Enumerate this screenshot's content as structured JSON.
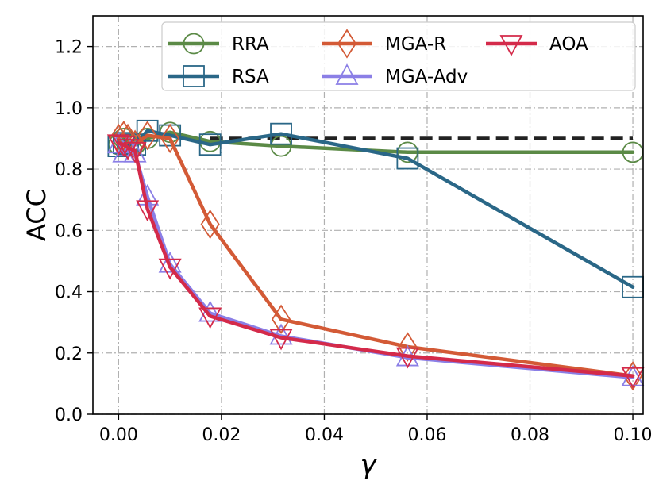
{
  "chart_data": {
    "type": "line",
    "xlabel": "γ",
    "ylabel": "ACC",
    "xlim": [
      -0.005,
      0.102
    ],
    "ylim": [
      0.0,
      1.3
    ],
    "xticks": [
      0.0,
      0.02,
      0.04,
      0.06,
      0.08,
      0.1
    ],
    "xtick_labels": [
      "0.00",
      "0.02",
      "0.04",
      "0.06",
      "0.08",
      "0.10"
    ],
    "yticks": [
      0.0,
      0.2,
      0.4,
      0.6,
      0.8,
      1.0,
      1.2
    ],
    "ytick_labels": [
      "0.0",
      "0.2",
      "0.4",
      "0.6",
      "0.8",
      "1.0",
      "1.2"
    ],
    "grid": true,
    "legend_position": "top-right",
    "x": [
      0.0,
      0.001,
      0.0018,
      0.0032,
      0.0056,
      0.01,
      0.0178,
      0.0316,
      0.0562,
      0.1
    ],
    "reference_line": {
      "y": 0.9,
      "style": "dashed",
      "color": "#222222"
    },
    "series": [
      {
        "name": "RRA",
        "color": "#5b8a46",
        "marker": "circle",
        "values": [
          0.88,
          0.9,
          0.88,
          0.88,
          0.9,
          0.92,
          0.89,
          0.875,
          0.855,
          0.855
        ]
      },
      {
        "name": "RSA",
        "color": "#2a6787",
        "marker": "square",
        "values": [
          0.875,
          0.885,
          0.88,
          0.88,
          0.925,
          0.91,
          0.88,
          0.915,
          0.835,
          0.415
        ]
      },
      {
        "name": "MGA-R",
        "color": "#d35a36",
        "marker": "diamond",
        "values": [
          0.9,
          0.91,
          0.9,
          0.88,
          0.91,
          0.9,
          0.62,
          0.31,
          0.22,
          0.125
        ]
      },
      {
        "name": "MGA-Adv",
        "color": "#8b7fe6",
        "marker": "triangle-up",
        "values": [
          0.88,
          0.85,
          0.87,
          0.85,
          0.71,
          0.49,
          0.33,
          0.255,
          0.185,
          0.12
        ]
      },
      {
        "name": "AOA",
        "color": "#d42a4a",
        "marker": "triangle-down",
        "values": [
          0.885,
          0.88,
          0.87,
          0.86,
          0.67,
          0.48,
          0.32,
          0.25,
          0.19,
          0.125
        ]
      }
    ]
  }
}
